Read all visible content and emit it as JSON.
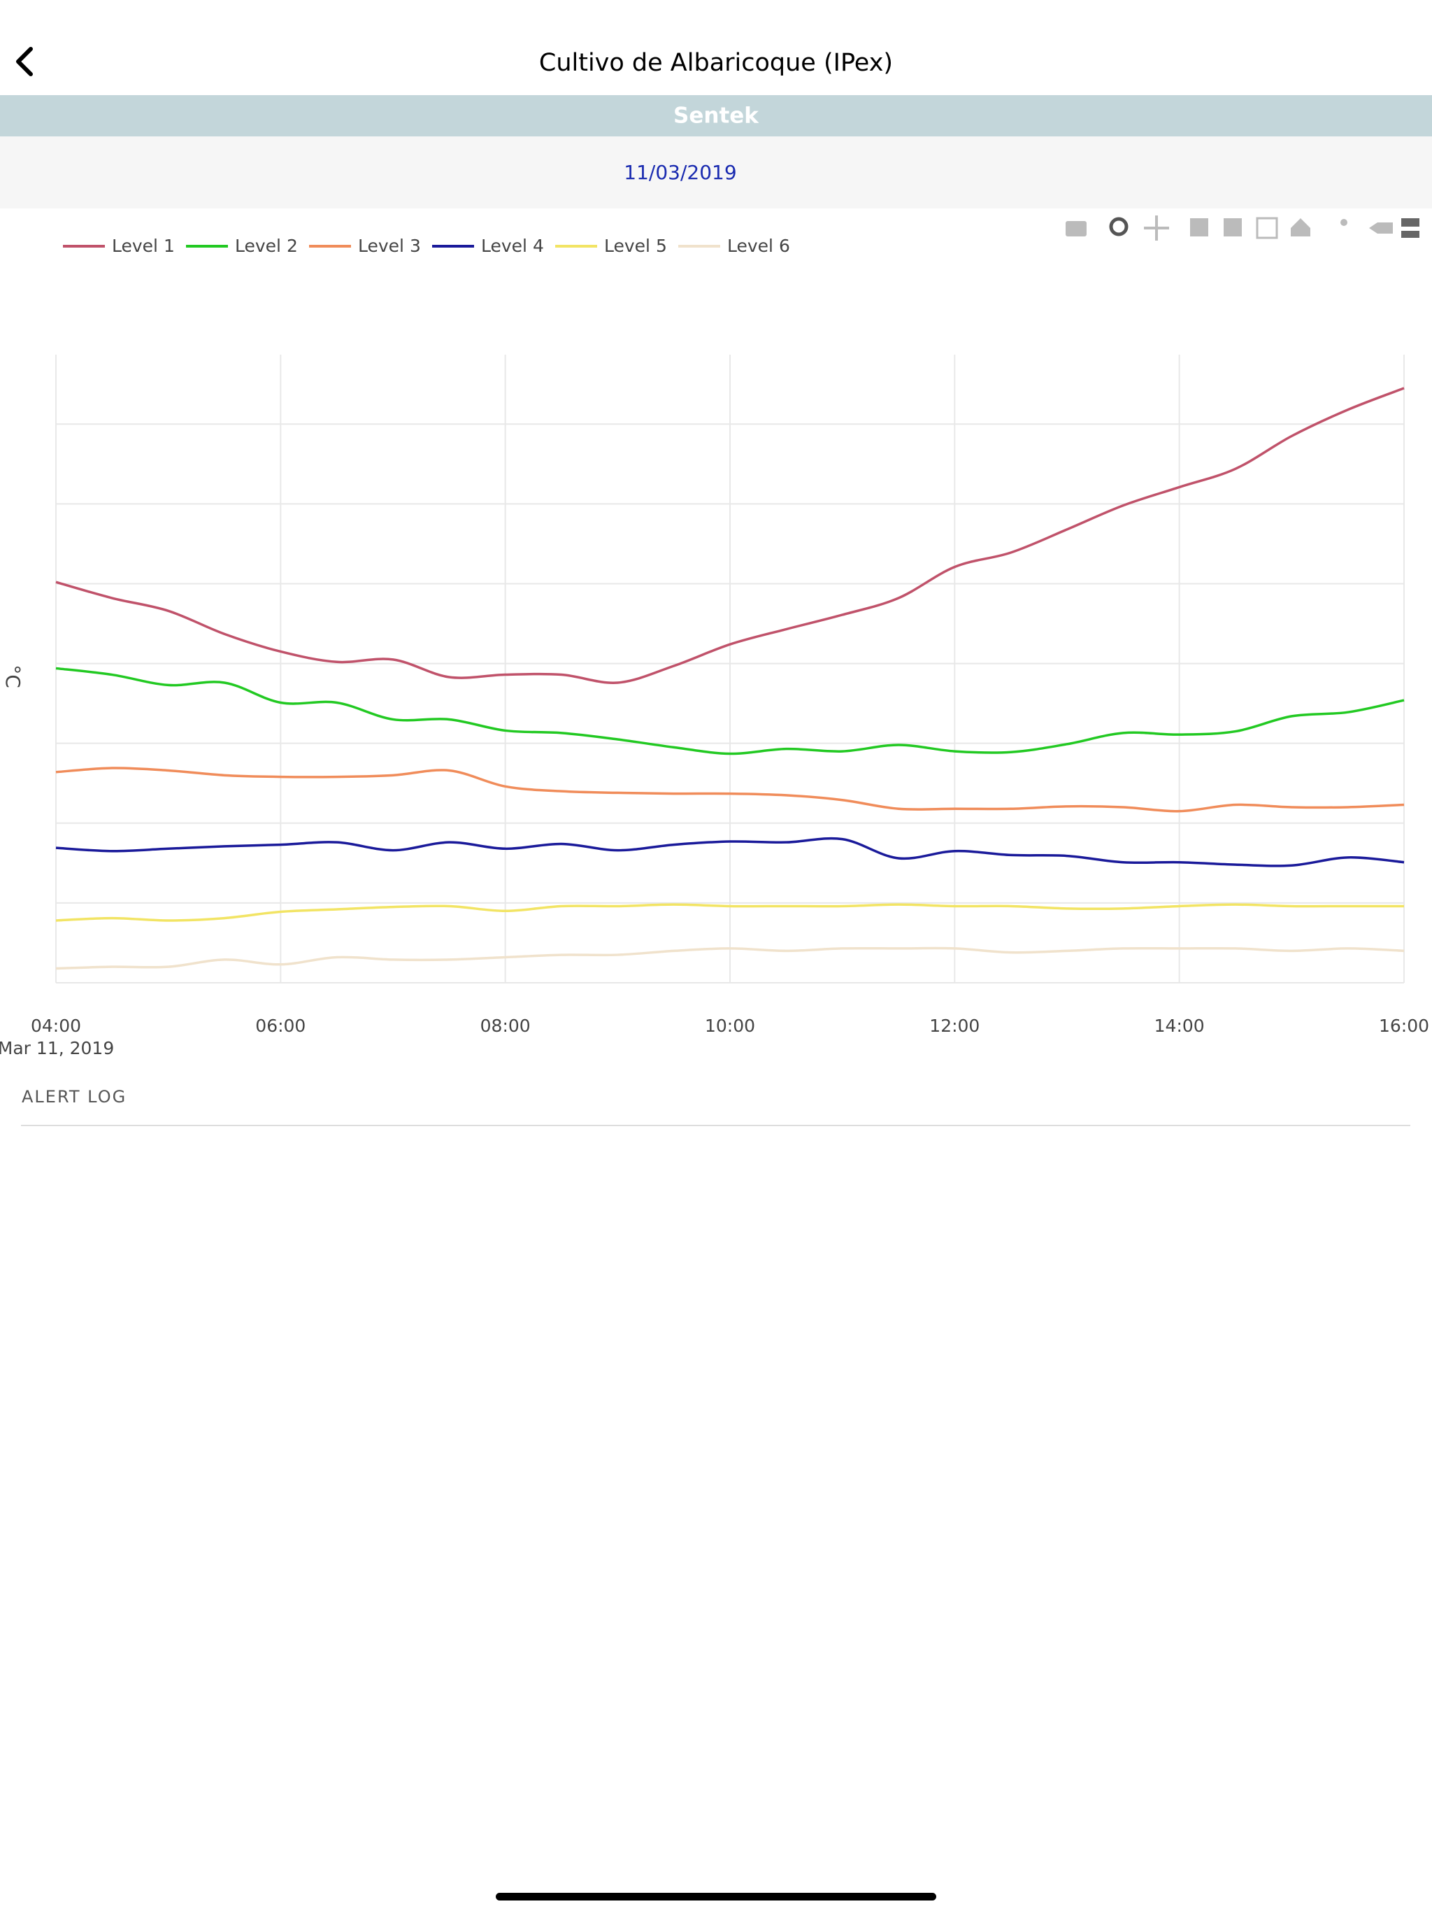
{
  "header": {
    "title": "Cultivo de Albaricoque (IPex)",
    "device": "Sentek",
    "date": "11/03/2019"
  },
  "chart_data": {
    "type": "line",
    "y_label": "°C",
    "x_date": "Mar 11, 2019",
    "x": [
      4,
      4.5,
      5,
      5.5,
      6,
      6.5,
      7,
      7.5,
      8,
      8.5,
      9,
      9.5,
      10,
      10.5,
      11,
      11.5,
      12,
      12.5,
      13,
      13.5,
      14,
      14.5,
      15,
      15.5,
      16
    ],
    "xlim": [
      4,
      16
    ],
    "xticks": [
      {
        "value": 4,
        "label": "04:00"
      },
      {
        "value": 6,
        "label": "06:00"
      },
      {
        "value": 8,
        "label": "08:00"
      },
      {
        "value": 10,
        "label": "10:00"
      },
      {
        "value": 12,
        "label": "12:00"
      },
      {
        "value": 14,
        "label": "14:00"
      },
      {
        "value": 16,
        "label": "16:00"
      }
    ],
    "ylim": [
      0,
      7.87
    ],
    "yticks": [
      0,
      1,
      2,
      3,
      4,
      5,
      6,
      7
    ],
    "ytick_labels": false,
    "grid": true,
    "series": [
      {
        "name": "Level 1",
        "color": "#c0526a",
        "values": [
          5.02,
          4.82,
          4.66,
          4.37,
          4.15,
          4.02,
          4.05,
          3.83,
          3.86,
          3.86,
          3.76,
          3.97,
          4.24,
          4.43,
          4.61,
          4.82,
          5.21,
          5.39,
          5.68,
          5.98,
          6.21,
          6.44,
          6.85,
          7.18,
          7.45
        ]
      },
      {
        "name": "Level 2",
        "color": "#22c922",
        "values": [
          3.94,
          3.86,
          3.73,
          3.76,
          3.51,
          3.51,
          3.3,
          3.3,
          3.16,
          3.13,
          3.05,
          2.95,
          2.87,
          2.93,
          2.9,
          2.98,
          2.9,
          2.89,
          2.99,
          3.13,
          3.11,
          3.15,
          3.34,
          3.39,
          3.54
        ]
      },
      {
        "name": "Level 3",
        "color": "#f08c5a",
        "values": [
          2.64,
          2.69,
          2.66,
          2.6,
          2.58,
          2.58,
          2.6,
          2.66,
          2.46,
          2.4,
          2.38,
          2.37,
          2.37,
          2.35,
          2.29,
          2.18,
          2.18,
          2.18,
          2.21,
          2.2,
          2.15,
          2.23,
          2.2,
          2.2,
          2.23
        ]
      },
      {
        "name": "Level 4",
        "color": "#1a1a9a",
        "values": [
          1.69,
          1.65,
          1.68,
          1.71,
          1.73,
          1.76,
          1.66,
          1.76,
          1.68,
          1.74,
          1.66,
          1.73,
          1.77,
          1.76,
          1.8,
          1.56,
          1.65,
          1.6,
          1.59,
          1.51,
          1.51,
          1.48,
          1.47,
          1.57,
          1.51
        ]
      },
      {
        "name": "Level 5",
        "color": "#f2e464",
        "values": [
          0.78,
          0.81,
          0.78,
          0.81,
          0.89,
          0.92,
          0.95,
          0.96,
          0.9,
          0.96,
          0.96,
          0.98,
          0.96,
          0.96,
          0.96,
          0.98,
          0.96,
          0.96,
          0.93,
          0.93,
          0.96,
          0.98,
          0.96,
          0.96,
          0.96
        ]
      },
      {
        "name": "Level 6",
        "color": "#f0e2cc",
        "values": [
          0.18,
          0.2,
          0.2,
          0.29,
          0.23,
          0.32,
          0.29,
          0.29,
          0.32,
          0.35,
          0.35,
          0.4,
          0.43,
          0.4,
          0.43,
          0.43,
          0.43,
          0.38,
          0.4,
          0.43,
          0.43,
          0.43,
          0.4,
          0.43,
          0.4
        ]
      }
    ]
  },
  "alert_log": "ALERT LOG"
}
